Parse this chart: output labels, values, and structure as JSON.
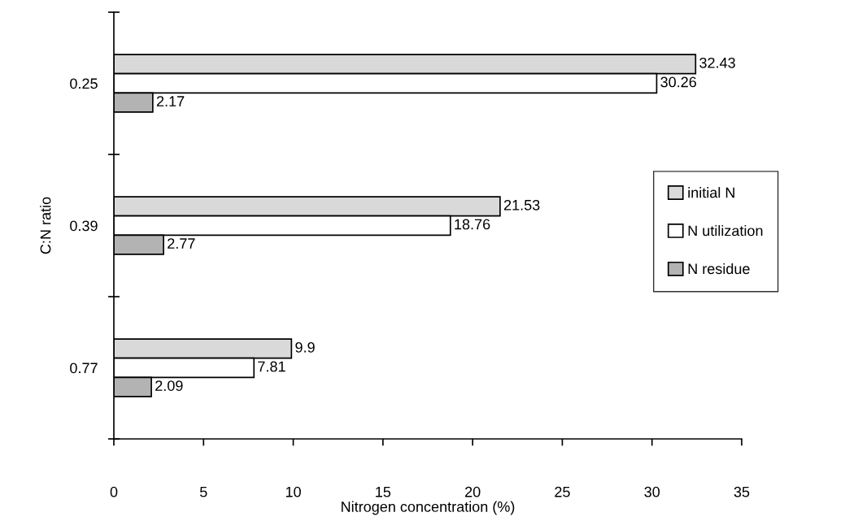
{
  "chart_data": {
    "type": "bar",
    "orientation": "horizontal",
    "xlabel": "Nitrogen concentration (%)",
    "ylabel": "C:N ratio",
    "categories": [
      "0.25",
      "0.39",
      "0.77"
    ],
    "series": [
      {
        "name": "initial N",
        "color": "#d9d9d9",
        "values": [
          32.43,
          21.53,
          9.9
        ]
      },
      {
        "name": "N utilization",
        "color": "#ffffff",
        "values": [
          30.26,
          18.76,
          7.81
        ]
      },
      {
        "name": "N residue",
        "color": "#b3b3b3",
        "values": [
          2.17,
          2.77,
          2.09
        ]
      }
    ],
    "xlim": [
      0,
      35
    ],
    "xticks": [
      0,
      5,
      10,
      15,
      20,
      25,
      30,
      35
    ],
    "data_labels": true,
    "grid": false,
    "legend": "right"
  }
}
